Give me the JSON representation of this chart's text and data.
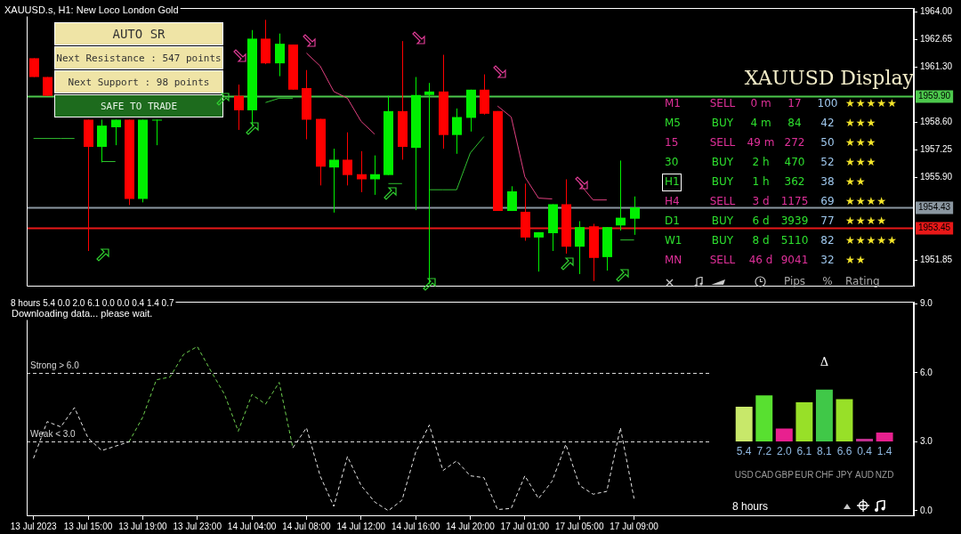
{
  "chart_data": [
    {
      "type": "candlestick",
      "title": "XAUUSD.s, H1: New Loco London Gold",
      "categories": [
        null,
        null,
        null,
        null,
        null,
        null,
        null,
        null,
        null,
        null,
        null,
        null,
        null,
        null,
        null,
        null,
        null,
        null,
        null,
        null,
        null,
        null,
        null,
        null,
        null,
        null,
        null,
        null,
        null,
        null,
        null,
        null,
        null,
        null,
        null,
        null,
        null,
        null,
        null,
        null,
        null,
        null,
        null,
        null,
        null,
        null,
        null,
        null,
        null,
        null,
        null,
        null,
        null,
        null,
        null,
        null,
        null,
        null,
        null,
        null,
        null,
        null,
        null,
        null,
        null
      ],
      "ohlc": [
        [
          1961.74,
          1961.74,
          1960.82,
          1960.82
        ],
        [
          1960.82,
          1960.82,
          1959.9,
          1959.9
        ],
        null,
        null,
        [
          1958.73,
          1958.73,
          1952.3,
          1957.4
        ],
        [
          1957.4,
          1958.73,
          1956.64,
          1958.44
        ],
        [
          1958.36,
          1958.73,
          1957.48,
          1958.73
        ],
        [
          1958.73,
          1958.73,
          1954.55,
          1954.85
        ],
        [
          1954.85,
          1958.73,
          1954.68,
          1958.73
        ],
        [
          1958.69,
          1958.73,
          1957.48,
          1958.73
        ],
        null,
        null,
        null,
        null,
        null,
        [
          1959.9,
          1960.45,
          1958.23,
          1959.19
        ],
        [
          1959.19,
          1963.12,
          1958.44,
          1962.7
        ],
        [
          1962.7,
          1963.62,
          1961.45,
          1961.49
        ],
        [
          1961.49,
          1962.95,
          1960.86,
          1962.45
        ],
        [
          1962.41,
          1962.41,
          1960.2,
          1960.2
        ],
        [
          1960.28,
          1961.16,
          1957.77,
          1958.73
        ],
        [
          1958.77,
          1958.77,
          1955.51,
          1956.43
        ],
        [
          1956.39,
          1957.31,
          1954.18,
          1956.77
        ],
        [
          1956.77,
          1958.11,
          1955.51,
          1956.02
        ],
        [
          1956.06,
          1957.19,
          1955.18,
          1955.81
        ],
        [
          1955.81,
          1956.98,
          1955.05,
          1956.06
        ],
        [
          1956.02,
          1959.9,
          1956.02,
          1959.15
        ],
        [
          1959.15,
          1962.58,
          1956.77,
          1957.4
        ],
        [
          1957.35,
          1960.82,
          1954.3,
          1959.94
        ],
        [
          1959.94,
          1960.53,
          1950.67,
          1960.11
        ],
        [
          1960.11,
          1961.91,
          1957.31,
          1957.98
        ],
        [
          1957.98,
          1959.28,
          1957.06,
          1958.86
        ],
        [
          1958.82,
          1960.2,
          1958.15,
          1960.2
        ],
        [
          1960.2,
          1960.95,
          1958.98,
          1959.02
        ],
        [
          1959.15,
          1959.15,
          1954.26,
          1954.26
        ],
        [
          1954.26,
          1955.47,
          1954.26,
          1955.22
        ],
        [
          1954.22,
          1955.6,
          1952.8,
          1952.96
        ],
        [
          1952.96,
          1953.22,
          1951.29,
          1953.22
        ],
        [
          1953.17,
          1954.59,
          1952.3,
          1954.59
        ],
        [
          1954.59,
          1955.81,
          1952.17,
          1952.51
        ],
        [
          1952.51,
          1953.76,
          1951.17,
          1953.47
        ],
        [
          1953.51,
          1953.63,
          1950.83,
          1951.96
        ],
        [
          1952.0,
          1953.47,
          1951.34,
          1953.47
        ],
        [
          1953.55,
          1956.73,
          1953.3,
          1953.93
        ],
        [
          1953.88,
          1954.97,
          1953.09,
          1954.43
        ],
        null,
        null,
        null,
        null,
        null,
        null,
        null,
        null,
        null,
        null,
        null,
        null,
        null,
        null,
        null,
        null,
        null,
        null,
        null,
        null
      ],
      "series": [
        {
          "type": "line",
          "color": "#e0407f",
          "values": [
            null,
            null,
            null,
            null,
            null,
            null,
            null,
            null,
            null,
            null,
            null,
            null,
            null,
            null,
            null,
            null,
            null,
            null,
            null,
            null,
            1961.99,
            1961.36,
            1960.11,
            1959.78,
            1958.65,
            1958.02,
            null,
            null,
            null,
            null,
            null,
            null,
            null,
            null,
            1959.4,
            1958.86,
            1955.93,
            1954.89,
            1954.85,
            null,
            1955.6,
            1954.8,
            1954.8,
            null,
            null,
            null,
            null,
            null,
            null,
            null,
            null,
            null,
            null,
            null,
            null,
            null,
            null,
            null,
            null,
            null,
            null,
            null,
            null,
            null,
            null
          ]
        },
        {
          "type": "line",
          "color": "#30c030",
          "values": [
            1957.81,
            1957.81,
            1957.81,
            1957.81,
            null,
            1956.68,
            1956.68,
            null,
            null,
            null,
            null,
            null,
            null,
            null,
            null,
            null,
            null,
            1959.57,
            1959.78,
            1959.78,
            null,
            null,
            null,
            null,
            null,
            null,
            1955.6,
            1955.6,
            null,
            1955.3,
            1955.3,
            1955.3,
            1957.1,
            1957.9,
            null,
            null,
            null,
            null,
            null,
            null,
            null,
            null,
            null,
            1952.84,
            1952.84,
            null,
            null,
            null,
            null,
            null,
            null,
            null,
            null,
            null,
            null,
            null,
            null,
            null,
            null,
            null,
            null,
            null,
            null,
            null,
            null
          ]
        }
      ],
      "ylim": [
        1950.6,
        1964.2
      ],
      "yticks": [
        1951.85,
        {
          "value": 1955.9,
          "label": "1955.90"
        },
        1957.25,
        {
          "value": 1958.6,
          "label": "1958.60"
        },
        {
          "value": 1961.3,
          "label": "1961.30"
        },
        1962.65,
        {
          "value": 1964,
          "label": "1964.00"
        }
      ],
      "tick_labels": "y",
      "ref_lines": [
        {
          "axis": "y",
          "value": 1959.9,
          "label": "1959.90",
          "color": "#4cc84c"
        },
        {
          "axis": "y",
          "value": 1954.43,
          "label": "1954.43",
          "color": "#8a96a0"
        },
        {
          "axis": "y",
          "value": 1953.45,
          "label": "1953.45",
          "color": "#e81818"
        }
      ],
      "annotations": [
        "AUTO SR",
        "Next Resistance : 547 points",
        "Next Support : 98 points",
        "SAFE TO TRADE"
      ]
    },
    {
      "type": "line",
      "title": "8 hours 5.4 0.0 2.0 6.1 0.0 0.0 0.4 1.4 0.7",
      "categories": [
        "13 Jul 2023",
        null,
        null,
        null,
        "13 Jul 15:00",
        null,
        null,
        null,
        "13 Jul 19:00",
        null,
        null,
        null,
        "13 Jul 23:00",
        null,
        null,
        null,
        "14 Jul 04:00",
        null,
        null,
        null,
        "14 Jul 08:00",
        null,
        null,
        null,
        "14 Jul 12:00",
        null,
        null,
        null,
        "14 Jul 16:00",
        null,
        null,
        null,
        "14 Jul 20:00",
        null,
        null,
        null,
        "17 Jul 01:00",
        null,
        null,
        null,
        "17 Jul 05:00",
        null,
        null,
        null,
        "17 Jul 09:00",
        null,
        null,
        null,
        null,
        null,
        null,
        null,
        null,
        null,
        null,
        null,
        null,
        null,
        null,
        null,
        null,
        null,
        null,
        null,
        null
      ],
      "series": [
        {
          "color": "#e8e8e8",
          "values": [
            2.28,
            3.88,
            3.65,
            4.49,
            3.16,
            2.62,
            2.81,
            3.0,
            null,
            null,
            null,
            null,
            null,
            null,
            null,
            null,
            null,
            null,
            null,
            2.74,
            3.61,
            1.52,
            0.19,
            2.36,
            1.1,
            0.38,
            0.0,
            0.46,
            2.55,
            3.73,
            1.75,
            2.17,
            1.52,
            1.44,
            0.05,
            0.1,
            1.52,
            0.53,
            1.29,
            2.89,
            1.1,
            0.72,
            0.84,
            3.61,
            0.53,
            null,
            null,
            null,
            null,
            null,
            null,
            null,
            null,
            null,
            null,
            null,
            null,
            null,
            null,
            null,
            null,
            null,
            null,
            null,
            null
          ]
        },
        {
          "color": "#6fd050",
          "values": [
            null,
            null,
            null,
            null,
            null,
            null,
            null,
            3.0,
            4.07,
            5.7,
            5.82,
            6.81,
            7.15,
            6.08,
            5.06,
            3.46,
            5.06,
            4.64,
            5.59,
            2.74,
            null,
            null,
            null,
            null,
            null,
            null,
            null,
            null,
            null,
            null,
            null,
            null,
            null,
            null,
            null,
            null,
            null,
            null,
            null,
            null,
            null,
            null,
            null,
            null,
            null,
            null,
            null,
            null,
            null,
            null,
            null,
            null,
            null,
            null,
            null,
            null,
            null,
            null,
            null,
            null,
            null,
            null,
            null,
            null,
            null
          ]
        }
      ],
      "ylim": [
        -0.2,
        9.1
      ],
      "yticks": [
        {
          "value": 0,
          "label": "0.0"
        },
        {
          "value": 3,
          "label": "3.0"
        },
        {
          "value": 6,
          "label": "6.0"
        },
        {
          "value": 9,
          "label": "9.0"
        }
      ],
      "line_style": "dashed",
      "ref_lines": [
        {
          "axis": "y",
          "value": 6,
          "label": "Strong > 6.0",
          "color": "#d8d8d8",
          "line_style": "dashed"
        },
        {
          "axis": "y",
          "value": 3,
          "label": "Weak < 3.0",
          "color": "#d8d8d8",
          "line_style": "dashed"
        }
      ],
      "annotations": [
        "Downloading data... please wait."
      ]
    },
    {
      "type": "bar",
      "title": "8 hours",
      "categories": [
        "USD",
        "CAD",
        "GBP",
        "EUR",
        "CHF",
        "JPY",
        "AUD",
        "NZD"
      ],
      "values": [
        5.4,
        7.2,
        2.0,
        6.1,
        8.1,
        6.6,
        0.4,
        1.4
      ],
      "value_labels": [
        "5.4",
        "7.2",
        "2.0",
        "6.1",
        "8.1",
        "6.6",
        "0.4",
        "1.4"
      ],
      "colors": [
        "#c8e86a",
        "#58e030",
        "#e8208f",
        "#98e028",
        "#40c848",
        "#98e028",
        "#c0308f",
        "#e8208f"
      ],
      "tick_labels": "x",
      "annotations": [
        "Δ"
      ]
    },
    {
      "type": "other",
      "title": "XAUUSD Display",
      "y_categories": [
        "M1",
        "M5",
        "15",
        "30",
        "H1",
        "H4",
        "D1",
        "W1",
        "MN"
      ],
      "categories": [
        null,
        null,
        "Pips",
        "%",
        "Rating"
      ],
      "cell_labels": [
        [
          "SELL",
          "0 m",
          "17",
          "100",
          "★★★★★"
        ],
        [
          "BUY",
          "4 m",
          "84",
          "42",
          "★★★"
        ],
        [
          "SELL",
          "49 m",
          "272",
          "50",
          "★★★"
        ],
        [
          "BUY",
          "2 h",
          "470",
          "52",
          "★★★"
        ],
        [
          "BUY",
          "1 h",
          "362",
          "38",
          "★★"
        ],
        [
          "SELL",
          "3 d",
          "1175",
          "69",
          "★★★★"
        ],
        [
          "BUY",
          "6 d",
          "3939",
          "77",
          "★★★★"
        ],
        [
          "BUY",
          "8 d",
          "5110",
          "82",
          "★★★★★"
        ],
        [
          "SELL",
          "46 d",
          "9041",
          "32",
          "★★"
        ]
      ],
      "colors": [
        "#e0309a",
        "#2ee02e",
        "#e0309a",
        "#2ee02e",
        "#2ee02e",
        "#e0309a",
        "#2ee02e",
        "#2ee02e",
        "#e0309a"
      ]
    }
  ]
}
